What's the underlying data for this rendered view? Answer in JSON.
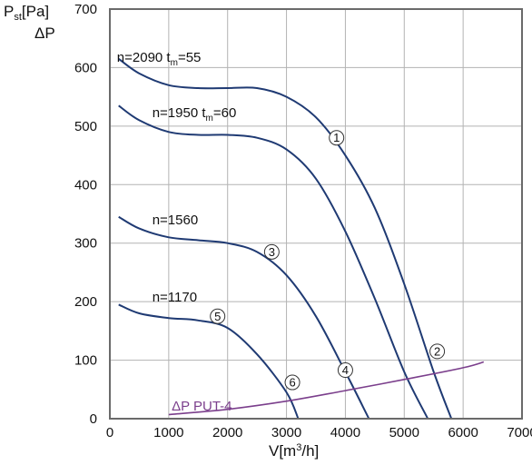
{
  "chart_data": {
    "type": "line",
    "ylabel_main": "P",
    "ylabel_sub": "st",
    "ylabel_unit": "[Pa]",
    "ylabel_second": "ΔP",
    "xlabel_main": "V[m",
    "xlabel_sup": "3",
    "xlabel_end": "/h]",
    "xlim": [
      0,
      7000
    ],
    "ylim": [
      0,
      700
    ],
    "xticks": [
      "0",
      "1000",
      "2000",
      "3000",
      "4000",
      "5000",
      "6000",
      "7000"
    ],
    "yticks": [
      "0",
      "100",
      "200",
      "300",
      "400",
      "500",
      "600",
      "700"
    ],
    "grid": true,
    "colors": {
      "fan_curve": "#1f3a73",
      "system_curve": "#7b3f8c",
      "grid": "#b3b3b3",
      "frame": "#6a6a6a"
    },
    "curve_labels": [
      {
        "main": "n=2090  t",
        "sub": "m",
        "end": "=55",
        "x": 120,
        "y": 610
      },
      {
        "main": "n=1950  t",
        "sub": "m",
        "end": "=60",
        "x": 720,
        "y": 515
      },
      {
        "main": "n=1560",
        "sub": "",
        "end": "",
        "x": 720,
        "y": 332
      },
      {
        "main": "n=1170",
        "sub": "",
        "end": "",
        "x": 720,
        "y": 200
      }
    ],
    "series": [
      {
        "marker": "1",
        "marker_at": [
          3850,
          480
        ],
        "x": [
          150,
          500,
          1000,
          1500,
          2000,
          2500,
          3000,
          3500,
          4000,
          4500,
          5000,
          5500,
          5800
        ],
        "y": [
          615,
          590,
          570,
          565,
          565,
          565,
          550,
          515,
          450,
          360,
          230,
          80,
          0
        ]
      },
      {
        "marker": "2",
        "marker_at": [
          5560,
          115
        ],
        "x": [
          150,
          500,
          1000,
          1500,
          2000,
          2500,
          3000,
          3500,
          4000,
          4500,
          5000,
          5400
        ],
        "y": [
          535,
          510,
          490,
          485,
          485,
          480,
          460,
          410,
          320,
          205,
          80,
          0
        ]
      },
      {
        "marker": "3",
        "marker_at": [
          2750,
          285
        ],
        "x": [
          150,
          500,
          1000,
          1500,
          2000,
          2500,
          3000,
          3500,
          4000,
          4400
        ],
        "y": [
          345,
          325,
          310,
          305,
          300,
          285,
          245,
          175,
          80,
          0
        ]
      },
      {
        "marker": "4",
        "marker_at": [
          4000,
          83
        ],
        "x": [
          4000,
          4400
        ],
        "y": [
          80,
          0
        ],
        "hidden": true
      },
      {
        "marker": "5",
        "marker_at": [
          1830,
          175
        ],
        "x": [
          150,
          500,
          1000,
          1500,
          2000,
          2500,
          3000,
          3200
        ],
        "y": [
          195,
          180,
          172,
          168,
          155,
          110,
          45,
          0
        ]
      },
      {
        "marker": "6",
        "marker_at": [
          3100,
          62
        ],
        "x": [
          3100,
          3200
        ],
        "y": [
          45,
          0
        ],
        "hidden": true
      }
    ],
    "system_curve": {
      "name": "ΔP PUT-4",
      "name_at": [
        1050,
        14
      ],
      "x": [
        1000,
        2000,
        3000,
        4000,
        5000,
        6000,
        6350
      ],
      "y": [
        7,
        16,
        30,
        48,
        67,
        87,
        97
      ]
    }
  }
}
